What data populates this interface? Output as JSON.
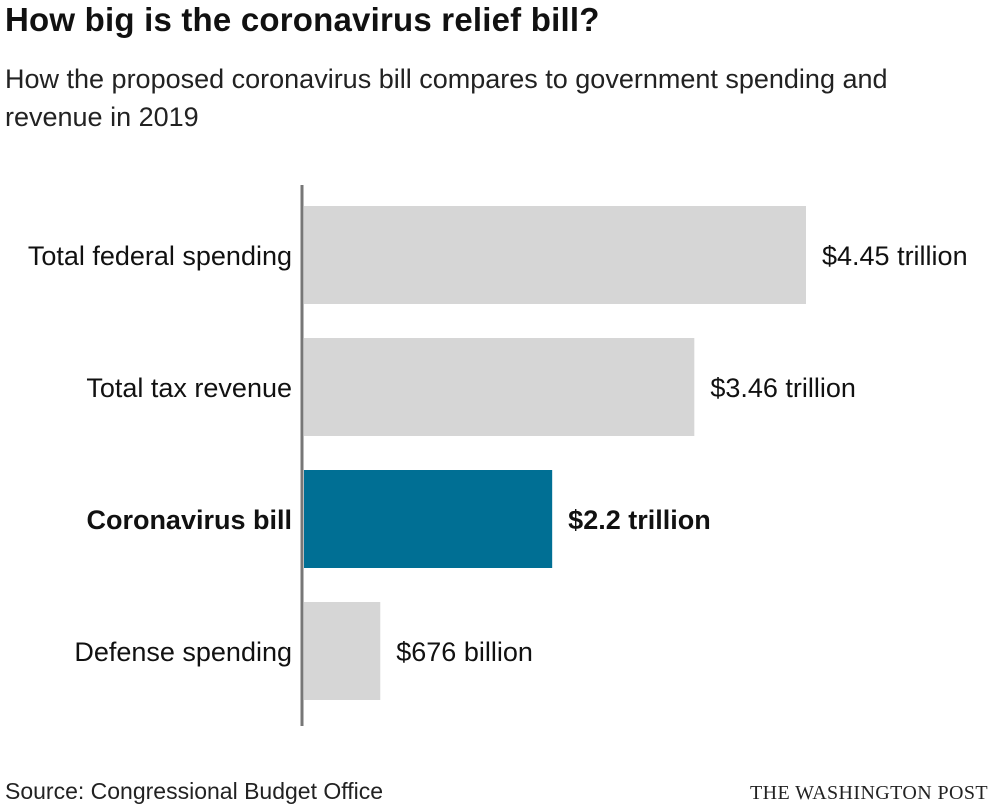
{
  "title": "How big is the coronavirus relief bill?",
  "subtitle": "How the proposed coronavirus bill compares to government spending and revenue in 2019",
  "source": "Source: Congressional Budget Office",
  "credit": "THE WASHINGTON POST",
  "colors": {
    "default_bar": "#d6d6d6",
    "highlight_bar": "#006f94",
    "axis": "#777777",
    "text": "#111111"
  },
  "chart_data": {
    "type": "bar",
    "orientation": "horizontal",
    "unit": "trillion dollars",
    "categories": [
      "Total federal spending",
      "Total tax revenue",
      "Coronavirus bill",
      "Defense spending"
    ],
    "values": [
      4.45,
      3.46,
      2.2,
      0.676
    ],
    "value_labels": [
      "$4.45 trillion",
      "$3.46 trillion",
      "$2.2 trillion",
      "$676 billion"
    ],
    "highlight": [
      false,
      false,
      true,
      false
    ],
    "xlim": [
      0,
      4.45
    ],
    "grid": false,
    "legend": "none"
  }
}
